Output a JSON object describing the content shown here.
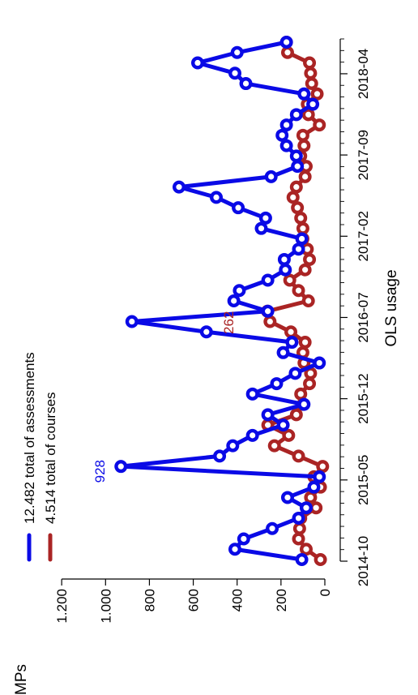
{
  "chart_data": {
    "type": "line",
    "orientation": "rotated 90 degrees counter-clockwise",
    "title": "OLS usage",
    "ylabel": "MPs",
    "xlabel": "",
    "ylim": [
      0,
      1300
    ],
    "y_ticks": [
      0,
      200,
      400,
      600,
      800,
      1000,
      1200
    ],
    "y_tick_labels": [
      "0",
      "200",
      "400",
      "600",
      "800",
      "1.000",
      "1.200"
    ],
    "x_tick_labels": [
      "2014-10",
      "2015-05",
      "2015-12",
      "2016-07",
      "2017-02",
      "2017-09",
      "2018-04"
    ],
    "x_range_months": [
      "2014-10",
      "2018-07"
    ],
    "legend_position": "top-left",
    "series": [
      {
        "name": "12.482 total of assessments",
        "color": "#0a0ae6",
        "values": [
          105,
          410,
          370,
          240,
          120,
          85,
          170,
          50,
          25,
          930,
          480,
          420,
          330,
          190,
          260,
          95,
          330,
          220,
          135,
          25,
          190,
          150,
          540,
          880,
          260,
          415,
          390,
          260,
          180,
          185,
          120,
          105,
          290,
          270,
          395,
          495,
          665,
          245,
          125,
          130,
          175,
          195,
          175,
          130,
          55,
          95,
          360,
          410,
          580,
          400,
          175
        ]
      },
      {
        "name": "4.514 total of courses",
        "color": "#aa2424",
        "values": [
          20,
          85,
          120,
          115,
          110,
          40,
          65,
          20,
          50,
          10,
          120,
          230,
          165,
          260,
          130,
          100,
          110,
          70,
          65,
          95,
          100,
          90,
          155,
          250,
          262,
          75,
          120,
          160,
          90,
          70,
          80,
          100,
          100,
          110,
          125,
          145,
          130,
          90,
          85,
          110,
          95,
          100,
          25,
          75,
          80,
          35,
          60,
          65,
          70,
          170,
          175
        ]
      }
    ],
    "annotations": [
      {
        "series": 0,
        "index": 9,
        "text": "928"
      },
      {
        "series": 1,
        "index": 24,
        "text": "262"
      }
    ]
  }
}
